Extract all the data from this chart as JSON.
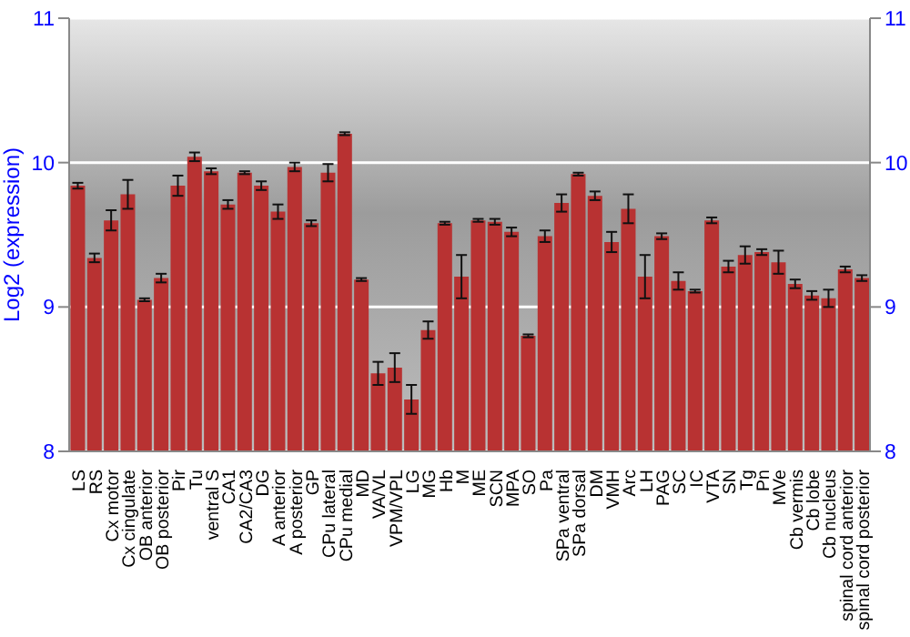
{
  "chart_data": {
    "type": "bar",
    "ylabel": "Log2 (expression)",
    "categories": [
      "LS",
      "RS",
      "Cx motor",
      "Cx cingulate",
      "OB anterior",
      "OB posterior",
      "Pir",
      "Tu",
      "ventral S",
      "CA1",
      "CA2/CA3",
      "DG",
      "A anterior",
      "A posterior",
      "GP",
      "CPu lateral",
      "CPu medial",
      "MD",
      "VA/VL",
      "VPM/VPL",
      "LG",
      "MG",
      "Hb",
      "M",
      "ME",
      "SCN",
      "MPA",
      "SO",
      "Pa",
      "SPa ventral",
      "SPa dorsal",
      "DM",
      "VMH",
      "Arc",
      "LH",
      "PAG",
      "SC",
      "IC",
      "VTA",
      "SN",
      "Tg",
      "Pn",
      "MVe",
      "Cb vermis",
      "Cb lobe",
      "Cb nucleus",
      "spinal cord anterior",
      "spinal cord posterior"
    ],
    "values": [
      9.84,
      9.34,
      9.6,
      9.78,
      9.05,
      9.2,
      9.84,
      10.04,
      9.94,
      9.71,
      9.93,
      9.84,
      9.66,
      9.97,
      9.58,
      9.93,
      10.2,
      9.19,
      8.54,
      8.58,
      8.36,
      8.84,
      9.58,
      9.21,
      9.6,
      9.59,
      9.52,
      8.8,
      9.49,
      9.72,
      9.92,
      9.77,
      9.45,
      9.68,
      9.21,
      9.49,
      9.18,
      9.11,
      9.6,
      9.28,
      9.36,
      9.38,
      9.31,
      9.16,
      9.08,
      9.06,
      9.26,
      9.2
    ],
    "errors": [
      0.02,
      0.03,
      0.07,
      0.1,
      0.01,
      0.03,
      0.07,
      0.03,
      0.02,
      0.03,
      0.01,
      0.03,
      0.05,
      0.03,
      0.02,
      0.06,
      0.01,
      0.01,
      0.08,
      0.1,
      0.1,
      0.06,
      0.01,
      0.15,
      0.01,
      0.02,
      0.03,
      0.01,
      0.04,
      0.06,
      0.01,
      0.03,
      0.07,
      0.1,
      0.15,
      0.02,
      0.06,
      0.01,
      0.02,
      0.04,
      0.06,
      0.02,
      0.08,
      0.03,
      0.03,
      0.06,
      0.02,
      0.02
    ],
    "color": "#b83232",
    "ylim": [
      8,
      11
    ],
    "yticks": [
      8,
      9,
      10,
      11
    ],
    "y2lim": [
      8,
      11
    ],
    "y2ticks": [
      8,
      9,
      10,
      11
    ],
    "grid": "y"
  }
}
